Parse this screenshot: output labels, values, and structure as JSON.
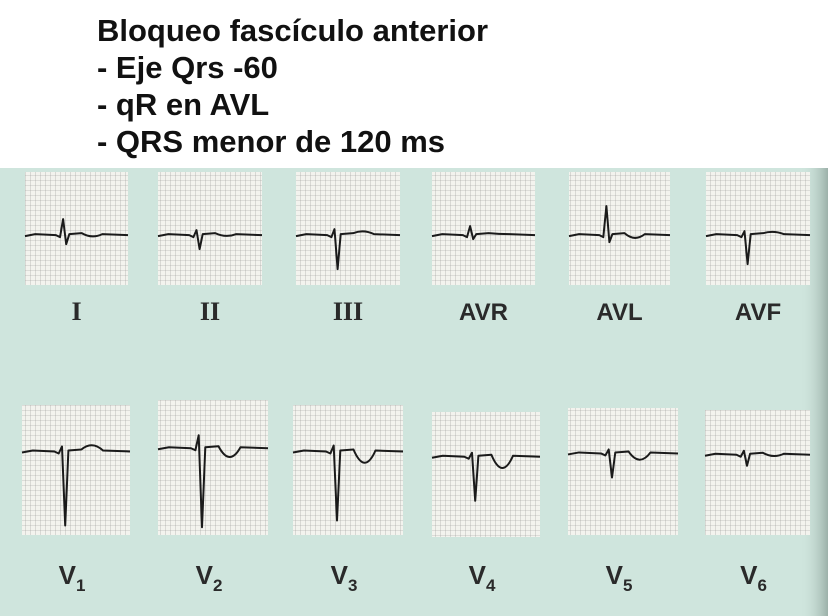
{
  "header": {
    "lines": [
      "Bloqueo fascículo anterior",
      "- Eje Qrs -60",
      "- qR en AVL",
      "- QRS menor de 120 ms"
    ]
  },
  "leads": {
    "limb": [
      {
        "text": "I"
      },
      {
        "text": "II"
      },
      {
        "text": "III"
      },
      {
        "text": "AVR"
      },
      {
        "text": "AVL"
      },
      {
        "text": "AVF"
      }
    ],
    "precordial": [
      {
        "text": "V",
        "sub": "1"
      },
      {
        "text": "V",
        "sub": "2"
      },
      {
        "text": "V",
        "sub": "3"
      },
      {
        "text": "V",
        "sub": "4"
      },
      {
        "text": "V",
        "sub": "5"
      },
      {
        "text": "V",
        "sub": "6"
      }
    ]
  }
}
